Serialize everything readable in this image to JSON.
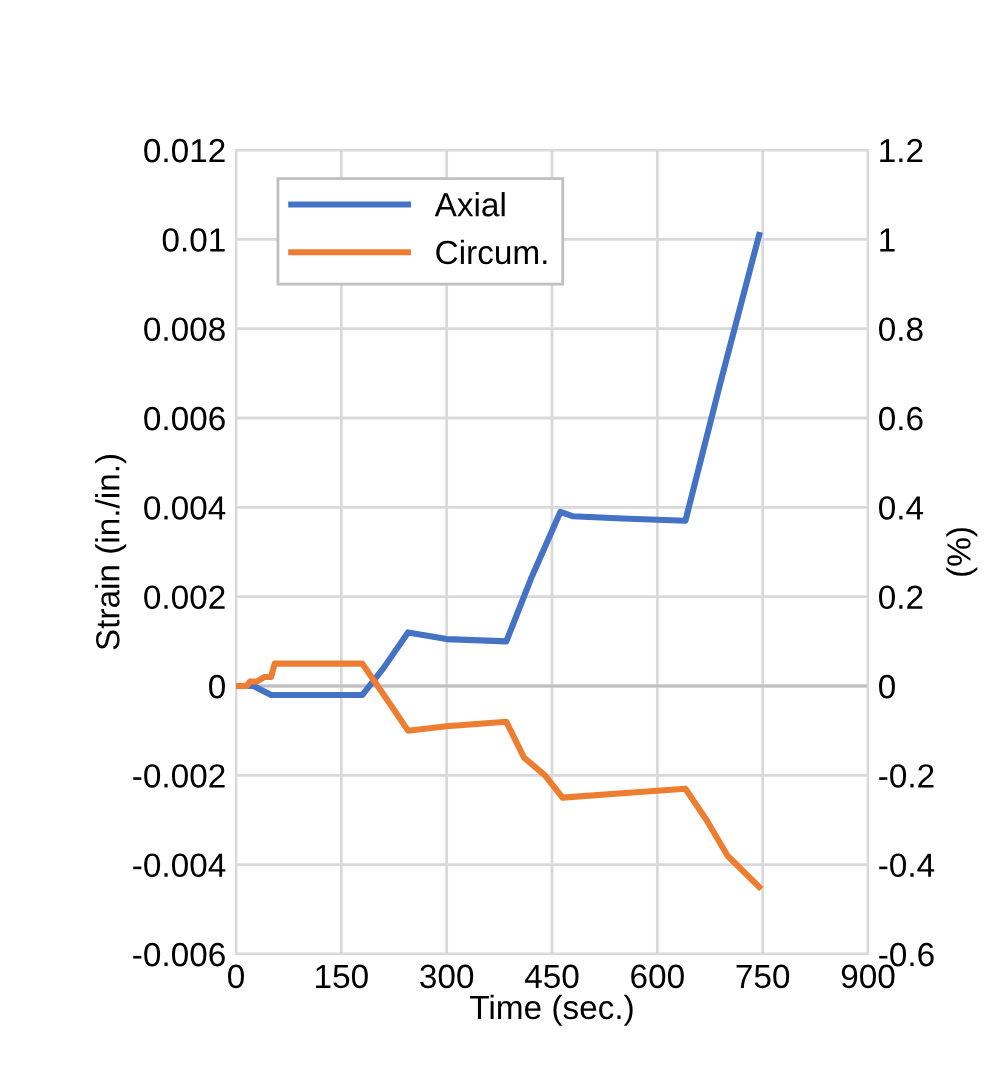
{
  "chart_data": {
    "type": "line",
    "xlabel": "Time (sec.)",
    "ylabel": "Strain (in./in.)",
    "y2label": "(%)",
    "xlim": [
      0,
      900
    ],
    "xticks": [
      0,
      150,
      300,
      450,
      600,
      750,
      900
    ],
    "ylim": [
      -0.006,
      0.012
    ],
    "yticks": [
      -0.006,
      -0.004,
      -0.002,
      0,
      0.002,
      0.004,
      0.006,
      0.008,
      0.01,
      0.012
    ],
    "y2lim": [
      -0.6,
      1.2
    ],
    "y2ticks": [
      -0.6,
      -0.4,
      -0.2,
      0,
      0.2,
      0.4,
      0.6,
      0.8,
      1,
      1.2
    ],
    "grid": true,
    "legend": "top left",
    "marker": "none",
    "line_style": "solid",
    "series": [
      {
        "name": "Axial",
        "color": "#4472c4",
        "x": [
          0,
          25,
          50,
          100,
          180,
          210,
          245,
          300,
          385,
          420,
          462,
          480,
          550,
          640,
          690,
          745
        ],
        "values": [
          0,
          0,
          -0.0002,
          -0.0002,
          -0.0002,
          0.0004,
          0.0012,
          0.00105,
          0.001,
          0.0024,
          0.0039,
          0.0038,
          0.00375,
          0.0037,
          0.0068,
          0.0101
        ]
      },
      {
        "name": "Circum.",
        "color": "#ed7d31",
        "x": [
          0,
          15,
          20,
          30,
          40,
          50,
          55,
          100,
          180,
          215,
          245,
          300,
          385,
          410,
          440,
          465,
          550,
          640,
          670,
          700,
          745
        ],
        "values": [
          0,
          0,
          0.0001,
          0.0001,
          0.0002,
          0.0002,
          0.0005,
          0.0005,
          0.0005,
          -0.0003,
          -0.001,
          -0.0009,
          -0.0008,
          -0.0016,
          -0.002,
          -0.0025,
          -0.0024,
          -0.0023,
          -0.003,
          -0.0038,
          -0.0045
        ]
      }
    ]
  }
}
